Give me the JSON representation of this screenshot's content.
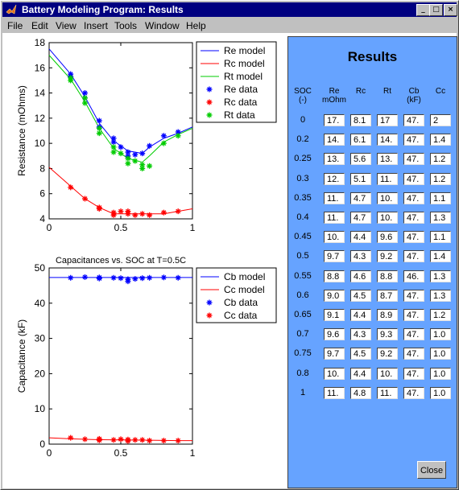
{
  "window": {
    "title": "Battery Modeling Program: Results",
    "minimize_glyph": "_",
    "maximize_glyph": "□",
    "close_glyph": "×"
  },
  "menu": [
    "File",
    "Edit",
    "View",
    "Insert",
    "Tools",
    "Window",
    "Help"
  ],
  "colors": {
    "blue": "#0000ff",
    "red": "#ff0000",
    "green": "#00cc00",
    "panel": "#66a3ff"
  },
  "chart_data": [
    {
      "type": "line",
      "title": "",
      "xlabel": "",
      "ylabel": "Resistance (mOhms)",
      "xlim": [
        0,
        1
      ],
      "ylim": [
        4,
        18
      ],
      "xticks": [
        0,
        0.5,
        1
      ],
      "yticks": [
        4,
        6,
        8,
        10,
        12,
        14,
        16,
        18
      ],
      "grid": false,
      "legend_position": "top-right-outside",
      "series": [
        {
          "name": "Re model",
          "kind": "line",
          "color": "#0000ff",
          "x": [
            0,
            0.15,
            0.25,
            0.35,
            0.45,
            0.55,
            0.65,
            0.7,
            0.8,
            0.9,
            1
          ],
          "y": [
            17.5,
            15.5,
            13.7,
            11.6,
            10.2,
            9.4,
            9.2,
            9.7,
            10.4,
            10.8,
            11.3
          ]
        },
        {
          "name": "Rc model",
          "kind": "line",
          "color": "#ff0000",
          "x": [
            0,
            0.15,
            0.25,
            0.35,
            0.45,
            0.55,
            0.65,
            0.8,
            0.9,
            1
          ],
          "y": [
            8.1,
            6.6,
            5.6,
            4.9,
            4.4,
            4.4,
            4.4,
            4.4,
            4.6,
            4.8
          ]
        },
        {
          "name": "Rt model",
          "kind": "line",
          "color": "#00cc00",
          "x": [
            0,
            0.15,
            0.25,
            0.35,
            0.45,
            0.55,
            0.65,
            0.7,
            0.8,
            0.9,
            1
          ],
          "y": [
            17.0,
            15.1,
            13.3,
            11.2,
            9.6,
            8.8,
            8.5,
            9.0,
            10.1,
            10.7,
            11.2
          ]
        },
        {
          "name": "Re data",
          "kind": "marker",
          "color": "#0000ff",
          "x": [
            0.15,
            0.15,
            0.25,
            0.25,
            0.35,
            0.35,
            0.45,
            0.45,
            0.5,
            0.55,
            0.55,
            0.6,
            0.65,
            0.7,
            0.8,
            0.9
          ],
          "y": [
            15.5,
            15.3,
            14.0,
            13.6,
            11.8,
            11.3,
            10.4,
            10.1,
            9.7,
            9.3,
            9.0,
            9.1,
            9.2,
            9.8,
            10.6,
            10.9
          ]
        },
        {
          "name": "Rc data",
          "kind": "marker",
          "color": "#ff0000",
          "x": [
            0.15,
            0.25,
            0.35,
            0.35,
            0.45,
            0.45,
            0.5,
            0.55,
            0.55,
            0.6,
            0.65,
            0.7,
            0.8,
            0.9
          ],
          "y": [
            6.5,
            5.6,
            4.9,
            4.8,
            4.5,
            4.3,
            4.6,
            4.6,
            4.4,
            4.3,
            4.4,
            4.3,
            4.5,
            4.6
          ]
        },
        {
          "name": "Rt data",
          "kind": "marker",
          "color": "#00cc00",
          "x": [
            0.15,
            0.15,
            0.25,
            0.25,
            0.35,
            0.35,
            0.45,
            0.45,
            0.5,
            0.55,
            0.55,
            0.6,
            0.65,
            0.65,
            0.7,
            0.8,
            0.9
          ],
          "y": [
            15.2,
            15.0,
            13.6,
            13.2,
            11.2,
            10.8,
            9.7,
            9.3,
            9.2,
            8.8,
            8.4,
            8.6,
            8.3,
            8.0,
            8.2,
            10.0,
            10.6
          ]
        }
      ]
    },
    {
      "type": "line",
      "title": "Capacitances vs. SOC at T=0.5C",
      "xlabel": "",
      "ylabel": "Capacitance (kF)",
      "xlim": [
        0,
        1
      ],
      "ylim": [
        0,
        50
      ],
      "xticks": [
        0,
        0.5,
        1
      ],
      "yticks": [
        0,
        10,
        20,
        30,
        40,
        50
      ],
      "grid": false,
      "legend_position": "top-right-outside",
      "series": [
        {
          "name": "Cb model",
          "kind": "line",
          "color": "#0000ff",
          "x": [
            0,
            1
          ],
          "y": [
            47.3,
            47.3
          ]
        },
        {
          "name": "Cc model",
          "kind": "line",
          "color": "#ff0000",
          "x": [
            0,
            0.15,
            0.3,
            0.5,
            0.7,
            0.9,
            1
          ],
          "y": [
            1.8,
            1.5,
            1.3,
            1.2,
            1.1,
            1.0,
            1.0
          ]
        },
        {
          "name": "Cb data",
          "kind": "marker",
          "color": "#0000ff",
          "x": [
            0.15,
            0.25,
            0.35,
            0.35,
            0.45,
            0.5,
            0.55,
            0.55,
            0.6,
            0.65,
            0.7,
            0.8,
            0.9
          ],
          "y": [
            47.2,
            47.4,
            47.3,
            47.0,
            47.2,
            47.1,
            46.8,
            46.2,
            46.9,
            47.1,
            47.2,
            47.3,
            47.2
          ],
          "sizes": [
            1,
            1,
            1,
            1,
            1,
            1,
            1,
            1,
            1,
            1,
            1,
            1,
            1
          ]
        },
        {
          "name": "Cc data",
          "kind": "marker",
          "color": "#ff0000",
          "x": [
            0.15,
            0.25,
            0.35,
            0.35,
            0.45,
            0.5,
            0.55,
            0.55,
            0.6,
            0.65,
            0.7,
            0.8,
            0.9
          ],
          "y": [
            1.8,
            1.4,
            1.5,
            1.1,
            1.2,
            1.4,
            1.3,
            0.9,
            1.2,
            1.2,
            1.0,
            1.0,
            1.0
          ]
        }
      ]
    }
  ],
  "results": {
    "title": "Results",
    "headers": [
      {
        "line1": "SOC",
        "line2": "(-)"
      },
      {
        "line1": "Re",
        "line2": "mOhm"
      },
      {
        "line1": "Rc",
        "line2": ""
      },
      {
        "line1": "Rt",
        "line2": ""
      },
      {
        "line1": "Cb",
        "line2": "(kF)"
      },
      {
        "line1": "Cc",
        "line2": ""
      }
    ],
    "rows": [
      {
        "soc": "0",
        "re": "17.",
        "rc": "8.1",
        "rt": "17",
        "cb": "47.",
        "cc": "2"
      },
      {
        "soc": "0.2",
        "re": "14.",
        "rc": "6.1",
        "rt": "14.",
        "cb": "47.",
        "cc": "1.4"
      },
      {
        "soc": "0.25",
        "re": "13.",
        "rc": "5.6",
        "rt": "13.",
        "cb": "47.",
        "cc": "1.2"
      },
      {
        "soc": "0.3",
        "re": "12.",
        "rc": "5.1",
        "rt": "11.",
        "cb": "47.",
        "cc": "1.2"
      },
      {
        "soc": "0.35",
        "re": "11.",
        "rc": "4.7",
        "rt": "10.",
        "cb": "47.",
        "cc": "1.1"
      },
      {
        "soc": "0.4",
        "re": "11.",
        "rc": "4.7",
        "rt": "10.",
        "cb": "47.",
        "cc": "1.3"
      },
      {
        "soc": "0.45",
        "re": "10.",
        "rc": "4.4",
        "rt": "9.6",
        "cb": "47.",
        "cc": "1.1"
      },
      {
        "soc": "0.5",
        "re": "9.7",
        "rc": "4.3",
        "rt": "9.2",
        "cb": "47.",
        "cc": "1.4"
      },
      {
        "soc": "0.55",
        "re": "8.8",
        "rc": "4.6",
        "rt": "8.8",
        "cb": "46.",
        "cc": "1.3"
      },
      {
        "soc": "0.6",
        "re": "9.0",
        "rc": "4.5",
        "rt": "8.7",
        "cb": "47.",
        "cc": "1.3"
      },
      {
        "soc": "0.65",
        "re": "9.1",
        "rc": "4.4",
        "rt": "8.9",
        "cb": "47.",
        "cc": "1.2"
      },
      {
        "soc": "0.7",
        "re": "9.6",
        "rc": "4.3",
        "rt": "9.3",
        "cb": "47.",
        "cc": "1.0"
      },
      {
        "soc": "0.75",
        "re": "9.7",
        "rc": "4.5",
        "rt": "9.2",
        "cb": "47.",
        "cc": "1.0"
      },
      {
        "soc": "0.8",
        "re": "10.",
        "rc": "4.4",
        "rt": "10.",
        "cb": "47.",
        "cc": "1.0"
      },
      {
        "soc": "1",
        "re": "11.",
        "rc": "4.8",
        "rt": "11.",
        "cb": "47.",
        "cc": "1.0"
      }
    ],
    "close_label": "Close"
  }
}
